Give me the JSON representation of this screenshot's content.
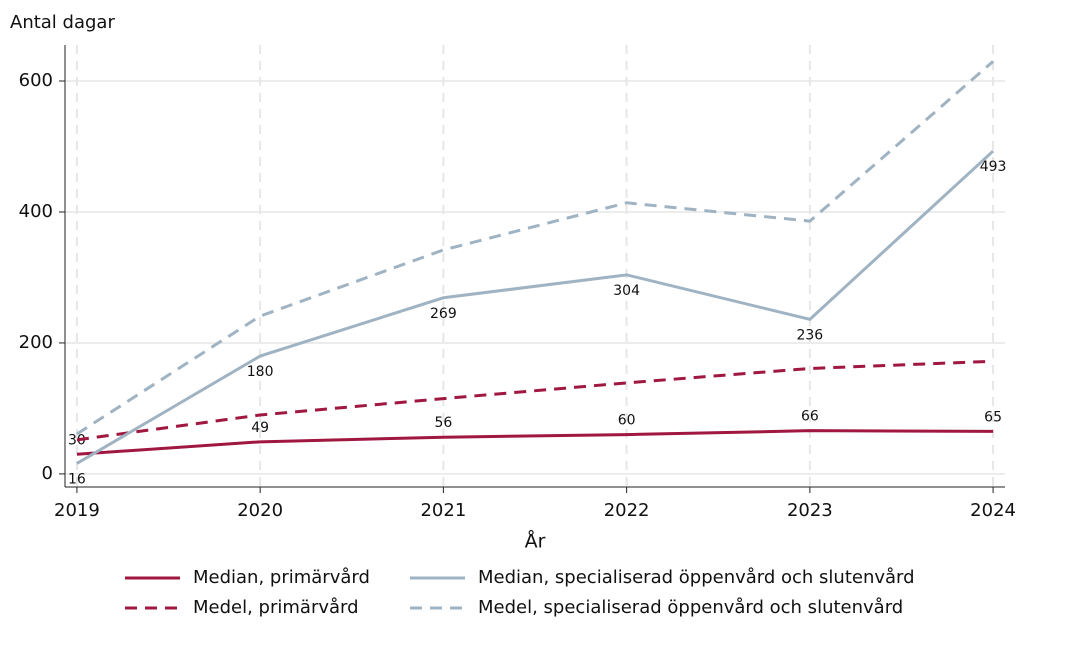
{
  "chart_data": {
    "type": "line",
    "y_label": "Antal dagar",
    "x_label": "År",
    "x": [
      2019,
      2020,
      2021,
      2022,
      2023,
      2024
    ],
    "xlim": [
      2018.935,
      2024.065
    ],
    "xticks": [
      2019,
      2020,
      2021,
      2022,
      2023,
      2024
    ],
    "ylim": [
      -20,
      655
    ],
    "yticks": [
      0,
      200,
      400,
      600
    ],
    "grid": true,
    "series": [
      {
        "name": "Median, primärvård",
        "color": "#a0173f",
        "dash": false,
        "data_labels": "above",
        "values": [
          30,
          49,
          56,
          60,
          66,
          65
        ]
      },
      {
        "name": "Medel, primärvård",
        "color": "#a0173f",
        "dash": true,
        "data_labels": "none",
        "values": [
          52,
          90,
          115,
          139,
          161,
          172
        ]
      },
      {
        "name": "Median, specialiserad öppenvård och slutenvård",
        "color": "#9fb3c3",
        "dash": false,
        "data_labels": "below",
        "values": [
          16,
          180,
          269,
          304,
          236,
          493
        ]
      },
      {
        "name": "Medel, specialiserad öppenvård och slutenvård",
        "color": "#9fb3c3",
        "dash": true,
        "data_labels": "none",
        "values": [
          61,
          241,
          342,
          414,
          386,
          630
        ]
      }
    ]
  }
}
